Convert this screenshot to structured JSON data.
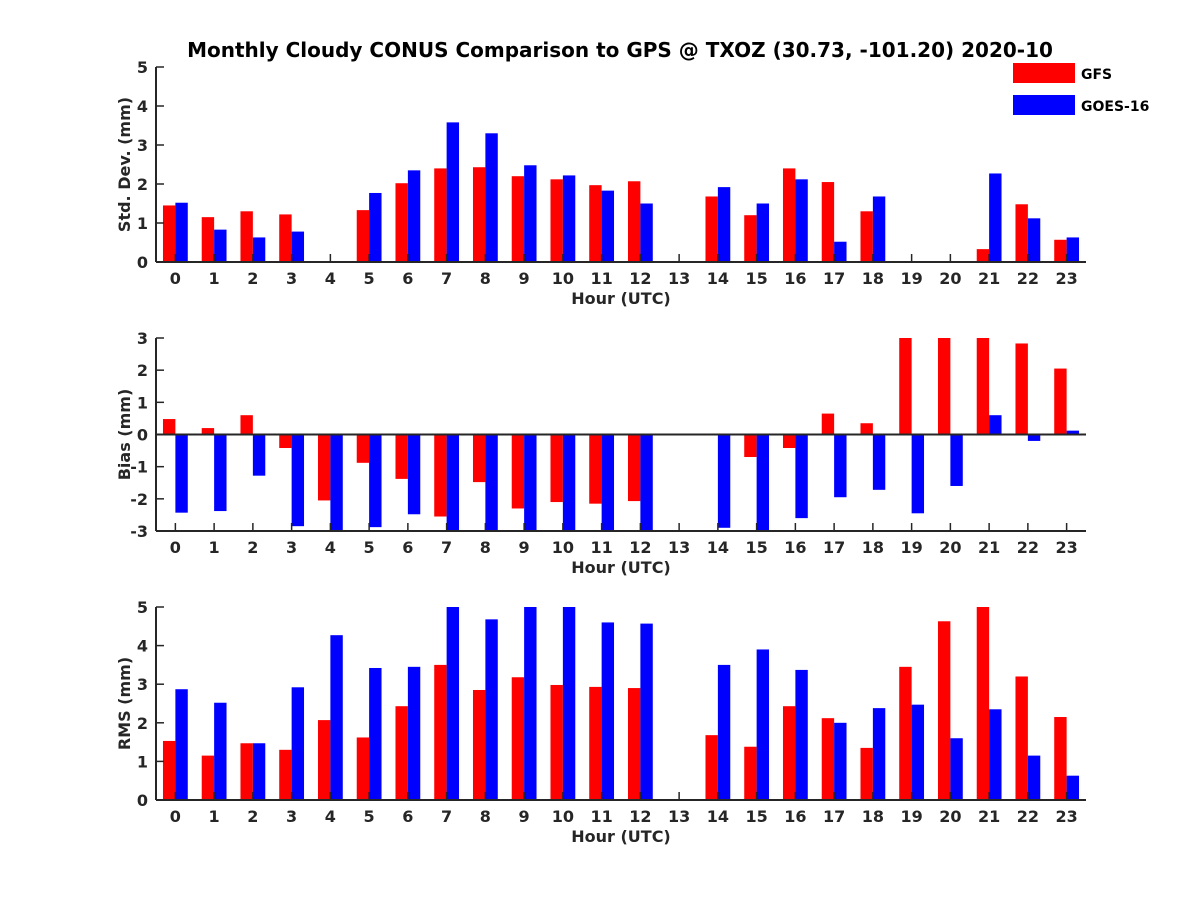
{
  "figure": {
    "title": "Monthly Cloudy CONUS Comparison to GPS @ TXOZ (30.73, -101.20) 2020-10"
  },
  "legend": {
    "placement": "top-right",
    "items": [
      {
        "label": "GFS",
        "color": "#ff0000"
      },
      {
        "label": "GOES-16",
        "color": "#0000ff"
      }
    ]
  },
  "chart_data": [
    {
      "type": "bar",
      "xlabel": "Hour (UTC)",
      "ylabel": "Std. Dev. (mm)",
      "ylim": [
        0,
        5
      ],
      "yticks": [
        0,
        1,
        2,
        3,
        4,
        5
      ],
      "grid": false,
      "categories": [
        "0",
        "1",
        "2",
        "3",
        "4",
        "5",
        "6",
        "7",
        "8",
        "9",
        "10",
        "11",
        "12",
        "13",
        "14",
        "15",
        "16",
        "17",
        "18",
        "19",
        "20",
        "21",
        "22",
        "23"
      ],
      "series": [
        {
          "name": "GFS",
          "color": "#ff0000",
          "values": [
            1.45,
            1.15,
            1.3,
            1.22,
            null,
            1.33,
            2.02,
            2.4,
            2.43,
            2.2,
            2.12,
            1.97,
            2.07,
            null,
            1.68,
            1.2,
            2.4,
            2.05,
            1.3,
            null,
            null,
            0.33,
            1.48,
            0.57
          ]
        },
        {
          "name": "GOES-16",
          "color": "#0000ff",
          "values": [
            1.52,
            0.83,
            0.63,
            0.78,
            null,
            1.77,
            2.35,
            3.58,
            3.3,
            2.48,
            2.22,
            1.83,
            1.5,
            null,
            1.92,
            1.5,
            2.12,
            0.52,
            1.68,
            null,
            null,
            2.27,
            1.12,
            0.63
          ]
        }
      ]
    },
    {
      "type": "bar",
      "xlabel": "Hour (UTC)",
      "ylabel": "Bias (mm)",
      "ylim": [
        -3,
        3
      ],
      "yticks": [
        -3,
        -2,
        -1,
        0,
        1,
        2,
        3
      ],
      "grid": false,
      "categories": [
        "0",
        "1",
        "2",
        "3",
        "4",
        "5",
        "6",
        "7",
        "8",
        "9",
        "10",
        "11",
        "12",
        "13",
        "14",
        "15",
        "16",
        "17",
        "18",
        "19",
        "20",
        "21",
        "22",
        "23"
      ],
      "series": [
        {
          "name": "GFS",
          "color": "#ff0000",
          "values": [
            0.48,
            0.2,
            0.6,
            -0.42,
            -2.05,
            -0.88,
            -1.38,
            -2.55,
            -1.48,
            -2.3,
            -2.1,
            -2.15,
            -2.07,
            null,
            null,
            -0.7,
            -0.42,
            0.65,
            0.35,
            3.0,
            3.0,
            3.0,
            2.83,
            2.05
          ]
        },
        {
          "name": "GOES-16",
          "color": "#0000ff",
          "values": [
            -2.43,
            -2.38,
            -1.28,
            -2.85,
            -3.0,
            -2.88,
            -2.48,
            -3.0,
            -3.0,
            -3.0,
            -3.0,
            -3.0,
            -3.0,
            null,
            -2.9,
            -3.0,
            -2.6,
            -1.95,
            -1.72,
            -2.45,
            -1.6,
            0.6,
            -0.2,
            0.12
          ]
        }
      ]
    },
    {
      "type": "bar",
      "xlabel": "Hour (UTC)",
      "ylabel": "RMS (mm)",
      "ylim": [
        0,
        5
      ],
      "yticks": [
        0,
        1,
        2,
        3,
        4,
        5
      ],
      "grid": false,
      "categories": [
        "0",
        "1",
        "2",
        "3",
        "4",
        "5",
        "6",
        "7",
        "8",
        "9",
        "10",
        "11",
        "12",
        "13",
        "14",
        "15",
        "16",
        "17",
        "18",
        "19",
        "20",
        "21",
        "22",
        "23"
      ],
      "series": [
        {
          "name": "GFS",
          "color": "#ff0000",
          "values": [
            1.53,
            1.15,
            1.47,
            1.3,
            2.07,
            1.62,
            2.43,
            3.5,
            2.85,
            3.18,
            2.98,
            2.93,
            2.9,
            null,
            1.68,
            1.38,
            2.43,
            2.12,
            1.35,
            3.45,
            4.63,
            5.0,
            3.2,
            2.15
          ]
        },
        {
          "name": "GOES-16",
          "color": "#0000ff",
          "values": [
            2.87,
            2.52,
            1.47,
            2.92,
            4.27,
            3.42,
            3.45,
            5.0,
            4.68,
            5.0,
            5.0,
            4.6,
            4.57,
            null,
            3.5,
            3.9,
            3.37,
            2.0,
            2.38,
            2.47,
            1.6,
            2.35,
            1.15,
            0.63
          ]
        }
      ]
    }
  ]
}
